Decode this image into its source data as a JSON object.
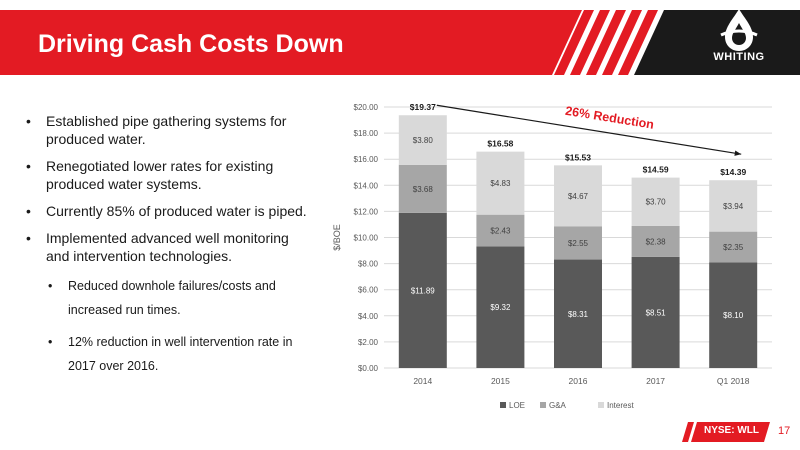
{
  "slide": {
    "title": "Driving Cash Costs Down",
    "logo_text": "WHITING",
    "ticker_prefix": "NYSE: ",
    "ticker_symbol": "WLL",
    "page_number": "17",
    "accent_color": "#e31b23"
  },
  "bullets": [
    {
      "level": 1,
      "text": "Established pipe gathering systems for produced water."
    },
    {
      "level": 1,
      "text": "Renegotiated lower rates for existing produced water systems."
    },
    {
      "level": 1,
      "text": "Currently  85% of produced water is piped."
    },
    {
      "level": 1,
      "text": "Implemented advanced well monitoring and intervention technologies."
    },
    {
      "level": 2,
      "text": "Reduced downhole failures/costs and increased run times."
    },
    {
      "level": 2,
      "text": "12% reduction in well intervention rate in 2017 over 2016."
    }
  ],
  "chart_data": {
    "type": "bar",
    "stacked": true,
    "categories": [
      "2014",
      "2015",
      "2016",
      "2017",
      "Q1 2018"
    ],
    "series": [
      {
        "name": "LOE",
        "values": [
          11.89,
          9.32,
          8.31,
          8.51,
          8.1
        ],
        "labels": [
          "$11.89",
          "$9.32",
          "$8.31",
          "$8.51",
          "$8.10"
        ],
        "color": "#595959"
      },
      {
        "name": "G&A",
        "values": [
          3.68,
          2.43,
          2.55,
          2.38,
          2.35
        ],
        "labels": [
          "$3.68",
          "$2.43",
          "$2.55",
          "$2.38",
          "$2.35"
        ],
        "color": "#a6a6a6"
      },
      {
        "name": "Interest",
        "values": [
          3.8,
          4.83,
          4.67,
          3.7,
          3.94
        ],
        "labels": [
          "$3.80",
          "$4.83",
          "$4.67",
          "$3.70",
          "$3.94"
        ],
        "color": "#d9d9d9"
      }
    ],
    "totals": [
      19.37,
      16.58,
      15.53,
      14.59,
      14.39
    ],
    "total_labels": [
      "$19.37",
      "$16.58",
      "$15.53",
      "$14.59",
      "$14.39"
    ],
    "ylabel": "$/BOE",
    "ylim": [
      0,
      20
    ],
    "yticks": [
      0,
      2,
      4,
      6,
      8,
      10,
      12,
      14,
      16,
      18,
      20
    ],
    "ytick_labels": [
      "$0.00",
      "$2.00",
      "$4.00",
      "$6.00",
      "$8.00",
      "$10.00",
      "$12.00",
      "$14.00",
      "$16.00",
      "$18.00",
      "$20.00"
    ],
    "grid": true,
    "legend_position": "bottom",
    "annotation": {
      "text": "26% Reduction",
      "color": "#e31b23",
      "from_category": "2014",
      "to_category": "Q1 2018"
    }
  }
}
